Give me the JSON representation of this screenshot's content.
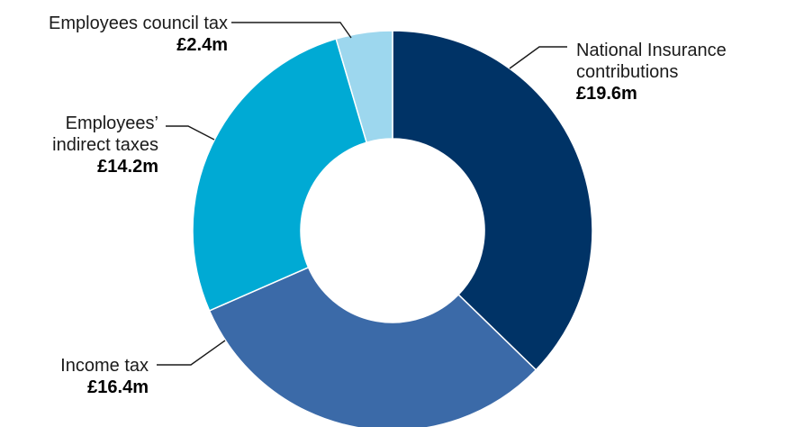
{
  "chart_data": {
    "type": "pie",
    "variant": "donut",
    "title": "",
    "slices": [
      {
        "label": [
          "National Insurance",
          "contributions"
        ],
        "value": 19.6,
        "value_label": "£19.6m",
        "color": "#003366"
      },
      {
        "label": [
          "Income tax"
        ],
        "value": 16.4,
        "value_label": "£16.4m",
        "color": "#3b6aa8"
      },
      {
        "label": [
          "Employees’",
          "indirect taxes"
        ],
        "value": 14.2,
        "value_label": "£14.2m",
        "color": "#00aad4"
      },
      {
        "label": [
          "Employees council tax"
        ],
        "value": 2.4,
        "value_label": "£2.4m",
        "color": "#9dd7ee"
      }
    ],
    "start_angle_deg": 0,
    "direction": "clockwise",
    "legend": "none"
  }
}
